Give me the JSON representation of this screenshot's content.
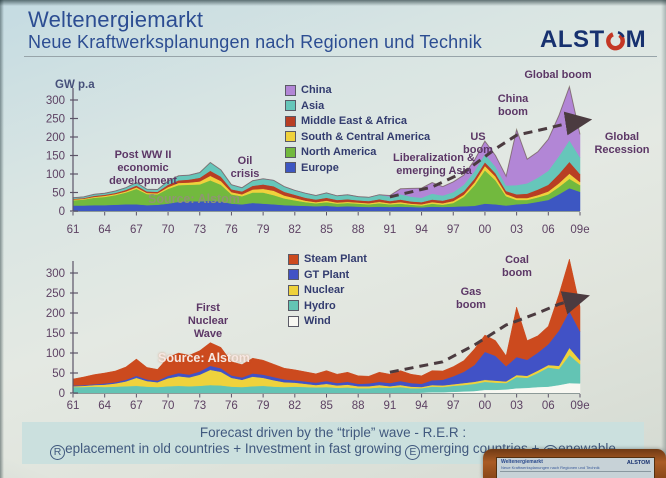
{
  "slide": {
    "title": "Weltenergiemarkt",
    "subtitle": "Neue Kraftwerksplanungen nach Regionen und Technik",
    "logo_left": "ALST",
    "logo_right": "M",
    "footer_line1": "Forecast driven by the “triple” wave - R.E.R :",
    "footer_line2": [
      {
        "c": "R",
        "t": "eplacement in old countries + Investment in fast growing "
      },
      {
        "c": "E",
        "t": "merging countries + "
      },
      {
        "c": "R",
        "t": "enewable"
      }
    ]
  },
  "chart_data": [
    {
      "type": "area",
      "stacked": true,
      "ylabel": "GW p.a",
      "source": "Source: Alstom",
      "x_start_year": 1961,
      "x_tick_step": 3,
      "x_tick_labels": [
        "61",
        "64",
        "67",
        "70",
        "73",
        "76",
        "79",
        "82",
        "85",
        "88",
        "91",
        "94",
        "97",
        "00",
        "03",
        "06",
        "09e"
      ],
      "ylim": [
        0,
        300
      ],
      "yticks": [
        0,
        50,
        100,
        150,
        200,
        250,
        300
      ],
      "grid": false,
      "legend_position": "top-center-overlay",
      "series": [
        {
          "name": "Europe",
          "color": "#3d57c2",
          "values": [
            15,
            15,
            16,
            16,
            17,
            18,
            18,
            16,
            17,
            20,
            25,
            27,
            26,
            28,
            26,
            20,
            18,
            22,
            20,
            18,
            16,
            15,
            14,
            13,
            14,
            12,
            13,
            12,
            11,
            12,
            11,
            12,
            11,
            10,
            12,
            11,
            12,
            13,
            14,
            20,
            18,
            15,
            18,
            20,
            25,
            30,
            45,
            62,
            52
          ]
        },
        {
          "name": "North America",
          "color": "#72b93e",
          "values": [
            14,
            16,
            20,
            22,
            26,
            32,
            42,
            30,
            28,
            40,
            45,
            44,
            46,
            55,
            45,
            25,
            22,
            28,
            30,
            25,
            18,
            14,
            10,
            8,
            10,
            8,
            9,
            8,
            7,
            9,
            7,
            8,
            6,
            5,
            8,
            6,
            10,
            25,
            55,
            90,
            65,
            25,
            12,
            10,
            12,
            15,
            20,
            25,
            18
          ]
        },
        {
          "name": "South & Central America",
          "color": "#efd23c",
          "values": [
            2,
            2,
            2,
            3,
            3,
            3,
            4,
            3,
            3,
            5,
            6,
            6,
            8,
            12,
            10,
            6,
            5,
            8,
            10,
            12,
            8,
            6,
            4,
            3,
            4,
            3,
            3,
            3,
            3,
            4,
            3,
            4,
            3,
            3,
            4,
            4,
            5,
            6,
            8,
            12,
            10,
            6,
            5,
            5,
            6,
            8,
            10,
            14,
            8
          ]
        },
        {
          "name": "Middle East & Africa",
          "color": "#b83e24",
          "values": [
            2,
            2,
            3,
            3,
            3,
            4,
            5,
            4,
            4,
            6,
            7,
            8,
            10,
            14,
            12,
            8,
            8,
            10,
            12,
            12,
            10,
            9,
            8,
            7,
            8,
            7,
            7,
            6,
            6,
            7,
            6,
            7,
            6,
            6,
            7,
            7,
            8,
            9,
            10,
            10,
            9,
            8,
            10,
            12,
            15,
            18,
            25,
            32,
            22
          ]
        },
        {
          "name": "Asia",
          "color": "#66c6ba",
          "values": [
            3,
            3,
            4,
            4,
            5,
            6,
            8,
            6,
            6,
            10,
            12,
            12,
            14,
            22,
            18,
            12,
            10,
            14,
            15,
            16,
            14,
            12,
            12,
            11,
            13,
            11,
            12,
            10,
            10,
            12,
            12,
            14,
            13,
            12,
            16,
            14,
            16,
            18,
            20,
            22,
            18,
            15,
            25,
            28,
            32,
            38,
            48,
            58,
            45
          ]
        },
        {
          "name": "China",
          "color": "#b286d6",
          "values": [
            0,
            0,
            0,
            0,
            0,
            0,
            0,
            0,
            0,
            0,
            0,
            0,
            0,
            0,
            0,
            0,
            0,
            0,
            0,
            0,
            0,
            0,
            0,
            0,
            0,
            0,
            0,
            0,
            0,
            0,
            3,
            15,
            22,
            26,
            30,
            24,
            28,
            26,
            30,
            35,
            30,
            25,
            150,
            65,
            70,
            85,
            110,
            145,
            62
          ]
        }
      ],
      "annotations": {
        "post_ww": "Post WW II\neconomic\ndevelopment",
        "oil": "Oil\ncrisis",
        "liberalization": "Liberalization &\nemerging Asia",
        "us_boom": "US\nboom",
        "china_boom": "China\nboom",
        "global_boom": "Global boom",
        "global_recession": "Global\nRecession"
      },
      "trend_arrow": [
        [
          1991,
          38
        ],
        [
          1995,
          65
        ],
        [
          1998,
          105
        ],
        [
          2001,
          168
        ],
        [
          2003,
          205
        ],
        [
          2006,
          224
        ],
        [
          2008,
          238
        ],
        [
          2009.6,
          245
        ]
      ]
    },
    {
      "type": "area",
      "stacked": true,
      "ylabel": "",
      "source": "Source: Alstom",
      "x_start_year": 1961,
      "x_tick_step": 3,
      "x_tick_labels": [
        "61",
        "64",
        "67",
        "70",
        "73",
        "76",
        "79",
        "82",
        "85",
        "88",
        "91",
        "94",
        "97",
        "00",
        "03",
        "06",
        "09e"
      ],
      "ylim": [
        0,
        300
      ],
      "yticks": [
        0,
        50,
        100,
        150,
        200,
        250,
        300
      ],
      "grid": false,
      "legend_position": "top-center-overlay",
      "series": [
        {
          "name": "Wind",
          "color": "#f8f8f2",
          "values": [
            0,
            0,
            0,
            0,
            0,
            0,
            0,
            0,
            0,
            0,
            0,
            0,
            0,
            0,
            0,
            0,
            0,
            0,
            0,
            0,
            0,
            0,
            0,
            0,
            0,
            0,
            0,
            0,
            0,
            0,
            0,
            0,
            0,
            1,
            2,
            2,
            3,
            4,
            5,
            8,
            8,
            9,
            12,
            13,
            15,
            16,
            20,
            25,
            24
          ]
        },
        {
          "name": "Hydro",
          "color": "#63c4b4",
          "values": [
            15,
            15,
            16,
            15,
            16,
            17,
            18,
            16,
            15,
            17,
            18,
            17,
            18,
            20,
            19,
            16,
            15,
            17,
            18,
            16,
            15,
            16,
            15,
            14,
            15,
            13,
            14,
            12,
            12,
            14,
            13,
            15,
            12,
            11,
            14,
            13,
            15,
            16,
            18,
            20,
            18,
            16,
            28,
            25,
            35,
            48,
            40,
            70,
            48
          ]
        },
        {
          "name": "Nuclear",
          "color": "#efd23c",
          "values": [
            2,
            3,
            4,
            6,
            8,
            12,
            20,
            14,
            12,
            20,
            24,
            22,
            28,
            38,
            34,
            22,
            18,
            24,
            20,
            16,
            12,
            10,
            8,
            6,
            8,
            6,
            7,
            5,
            5,
            6,
            4,
            5,
            4,
            3,
            4,
            4,
            4,
            5,
            5,
            5,
            5,
            4,
            5,
            5,
            6,
            6,
            8,
            18,
            10
          ]
        },
        {
          "name": "GT Plant",
          "color": "#4152c6",
          "values": [
            2,
            2,
            2,
            3,
            3,
            4,
            5,
            4,
            4,
            6,
            8,
            7,
            8,
            10,
            9,
            6,
            6,
            8,
            8,
            8,
            7,
            6,
            6,
            6,
            7,
            6,
            7,
            6,
            7,
            8,
            8,
            10,
            9,
            8,
            12,
            14,
            20,
            28,
            42,
            70,
            62,
            38,
            45,
            40,
            45,
            52,
            88,
            92,
            72
          ]
        },
        {
          "name": "Steam Plant",
          "color": "#cc4a1e",
          "values": [
            16,
            20,
            24,
            26,
            28,
            32,
            42,
            30,
            28,
            46,
            50,
            48,
            52,
            58,
            52,
            34,
            32,
            38,
            36,
            32,
            28,
            26,
            24,
            22,
            26,
            22,
            24,
            20,
            18,
            24,
            22,
            26,
            22,
            20,
            24,
            22,
            24,
            28,
            40,
            42,
            38,
            26,
            125,
            48,
            42,
            45,
            90,
            130,
            62
          ]
        }
      ],
      "annotations": {
        "first_nuclear": "First\nNuclear\nWave",
        "gas_boom": "Gas\nboom",
        "coal_boom": "Coal\nboom"
      },
      "trend_arrow": [
        [
          1991,
          52
        ],
        [
          1996,
          78
        ],
        [
          1999,
          120
        ],
        [
          2002,
          170
        ],
        [
          2005,
          200
        ],
        [
          2007,
          222
        ],
        [
          2009.4,
          240
        ]
      ]
    }
  ]
}
